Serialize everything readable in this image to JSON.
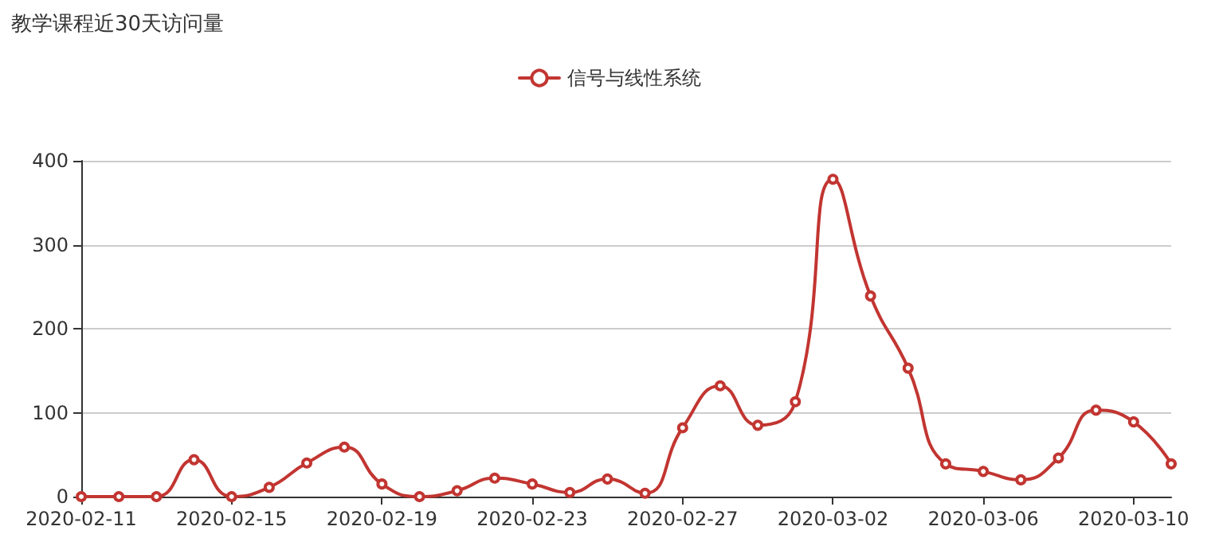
{
  "chart_data": {
    "type": "line",
    "title": "教学课程近30天访问量",
    "categories": [
      "2020-02-11",
      null,
      null,
      null,
      "2020-02-15",
      null,
      null,
      null,
      "2020-02-19",
      null,
      null,
      null,
      "2020-02-23",
      null,
      null,
      null,
      "2020-02-27",
      null,
      null,
      null,
      "2020-03-02",
      null,
      null,
      null,
      "2020-03-06",
      null,
      null,
      null,
      "2020-03-10",
      null
    ],
    "series": [
      {
        "name": "信号与线性系统",
        "color": "#c23531",
        "values": [
          0,
          0,
          0,
          44,
          0,
          11,
          40,
          59,
          15,
          0,
          7,
          22,
          15,
          5,
          21,
          4,
          82,
          132,
          85,
          113,
          378,
          239,
          153,
          39,
          30,
          20,
          46,
          103,
          89,
          39
        ]
      }
    ],
    "ylim": [
      0,
      400
    ],
    "yticks": [
      0,
      100,
      200,
      300,
      400
    ],
    "grid": "y",
    "legend": "top",
    "marker": "circle",
    "line_style": "solid"
  }
}
